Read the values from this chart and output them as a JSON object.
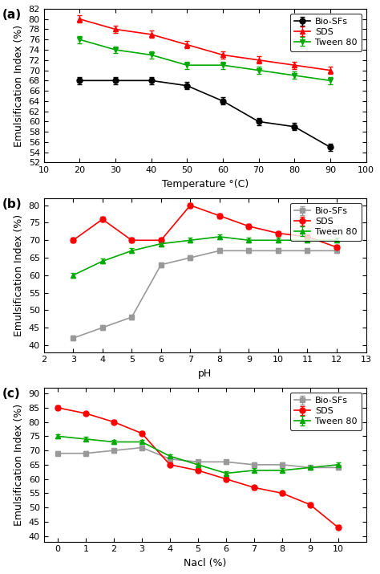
{
  "panel_a": {
    "x": [
      20,
      30,
      40,
      50,
      60,
      70,
      80,
      90
    ],
    "biosfs_y": [
      68,
      68,
      68,
      67,
      64,
      60,
      59,
      55
    ],
    "biosfs_err": [
      0.7,
      0.7,
      0.7,
      0.7,
      0.7,
      0.7,
      0.7,
      0.7
    ],
    "sds_y": [
      80,
      78,
      77,
      75,
      73,
      72,
      71,
      70
    ],
    "sds_err": [
      0.7,
      0.7,
      0.7,
      0.7,
      0.7,
      0.7,
      0.7,
      0.7
    ],
    "tween_y": [
      76,
      74,
      73,
      71,
      71,
      70,
      69,
      68
    ],
    "tween_err": [
      0.7,
      0.7,
      0.7,
      0.7,
      0.7,
      0.7,
      0.7,
      0.7
    ],
    "xlabel": "Temperature °(C)",
    "ylabel": "Emulsification Index (%)",
    "xlim": [
      10,
      100
    ],
    "ylim": [
      52,
      82
    ],
    "xticks": [
      10,
      20,
      30,
      40,
      50,
      60,
      70,
      80,
      90,
      100
    ],
    "yticks": [
      52,
      54,
      56,
      58,
      60,
      62,
      64,
      66,
      68,
      70,
      72,
      74,
      76,
      78,
      80,
      82
    ],
    "label": "(a)",
    "biosfs_color": "#000000",
    "biosfs_marker": "o"
  },
  "panel_b": {
    "x": [
      3,
      4,
      5,
      6,
      7,
      8,
      9,
      10,
      11,
      12
    ],
    "biosfs_y": [
      42,
      45,
      48,
      63,
      65,
      67,
      67,
      67,
      67,
      67
    ],
    "biosfs_err": [
      0.7,
      0.7,
      0.7,
      0.7,
      0.7,
      0.7,
      0.7,
      0.7,
      0.7,
      0.7
    ],
    "sds_y": [
      70,
      76,
      70,
      70,
      80,
      77,
      74,
      72,
      71,
      68
    ],
    "sds_err": [
      0.7,
      0.7,
      0.7,
      0.7,
      0.7,
      0.7,
      0.7,
      0.7,
      0.7,
      0.7
    ],
    "tween_y": [
      60,
      64,
      67,
      69,
      70,
      71,
      70,
      70,
      70,
      70
    ],
    "tween_err": [
      0.7,
      0.7,
      0.7,
      0.7,
      0.7,
      0.7,
      0.7,
      0.7,
      0.7,
      0.7
    ],
    "xlabel": "pH",
    "ylabel": "Emulsification Index (%)",
    "xlim": [
      2,
      13
    ],
    "ylim": [
      38,
      82
    ],
    "xticks": [
      2,
      3,
      4,
      5,
      6,
      7,
      8,
      9,
      10,
      11,
      12,
      13
    ],
    "yticks": [
      40,
      45,
      50,
      55,
      60,
      65,
      70,
      75,
      80
    ],
    "label": "(b)",
    "biosfs_color": "#999999",
    "biosfs_marker": "s"
  },
  "panel_c": {
    "x": [
      0,
      1,
      2,
      3,
      4,
      5,
      6,
      7,
      8,
      9,
      10
    ],
    "biosfs_y": [
      69,
      69,
      70,
      71,
      67,
      66,
      66,
      65,
      65,
      64,
      64
    ],
    "biosfs_err": [
      0.7,
      0.7,
      0.7,
      0.7,
      0.7,
      0.7,
      0.7,
      0.7,
      0.7,
      0.7,
      0.7
    ],
    "sds_y": [
      85,
      83,
      80,
      76,
      65,
      63,
      60,
      57,
      55,
      51,
      43
    ],
    "sds_err": [
      0.7,
      0.7,
      0.7,
      0.7,
      0.7,
      0.7,
      0.7,
      0.7,
      0.7,
      0.7,
      0.7
    ],
    "tween_y": [
      75,
      74,
      73,
      73,
      68,
      65,
      62,
      63,
      63,
      64,
      65
    ],
    "tween_err": [
      0.7,
      0.7,
      0.7,
      0.7,
      0.7,
      0.7,
      0.7,
      0.7,
      0.7,
      0.7,
      0.7
    ],
    "xlabel": "Nacl (%)",
    "ylabel": "Emulsification Index (%)",
    "xlim": [
      -0.5,
      11
    ],
    "ylim": [
      38,
      92
    ],
    "xticks": [
      0,
      1,
      2,
      3,
      4,
      5,
      6,
      7,
      8,
      9,
      10
    ],
    "yticks": [
      40,
      45,
      50,
      55,
      60,
      65,
      70,
      75,
      80,
      85,
      90
    ],
    "label": "(c)",
    "biosfs_color": "#999999",
    "biosfs_marker": "s"
  },
  "sds_color": "#ff0000",
  "tween_color": "#00aa00",
  "biosfs_label": "Bio-SFs",
  "sds_label": "SDS",
  "tween_label": "Tween 80",
  "sds_marker_a": "^",
  "tween_marker_a": "v",
  "sds_marker_bc": "o",
  "tween_marker_bc": "^",
  "linewidth": 1.2,
  "markersize": 5,
  "capsize": 2.5,
  "elinewidth": 0.9,
  "tick_fontsize": 8,
  "label_fontsize": 9,
  "legend_fontsize": 8
}
